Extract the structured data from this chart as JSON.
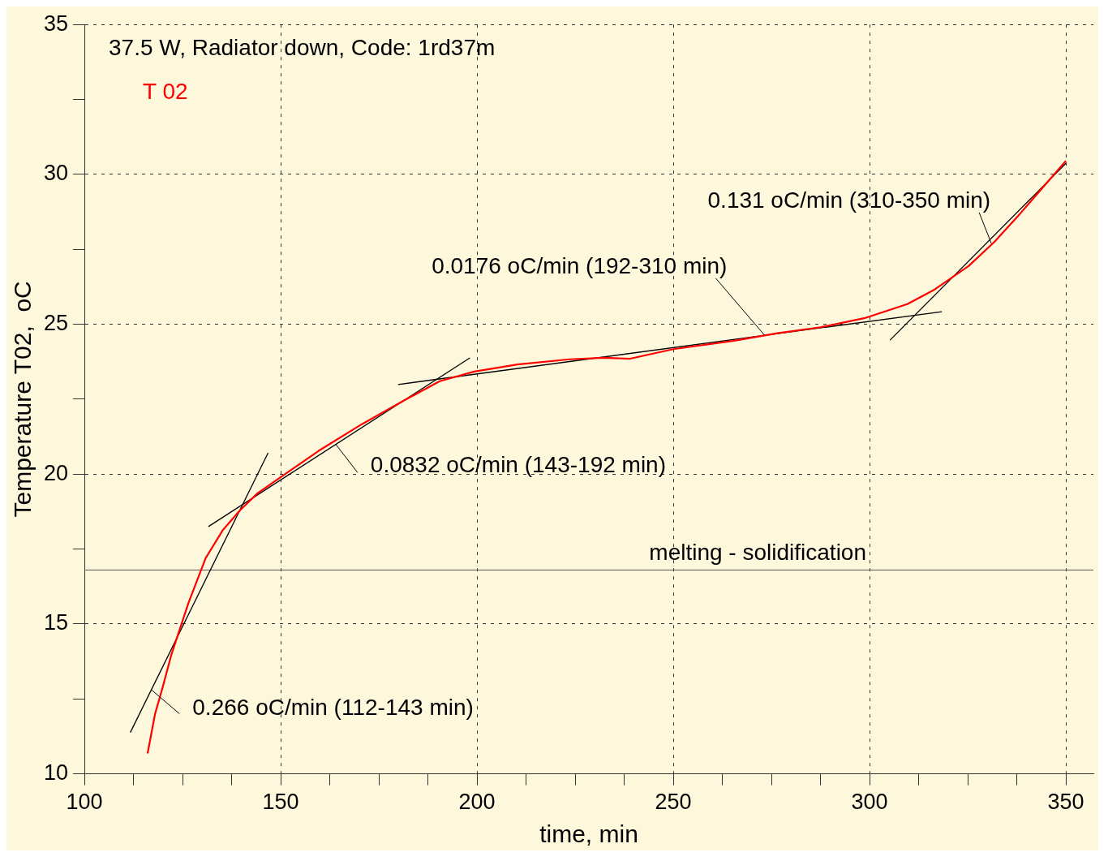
{
  "chart_data": {
    "type": "line",
    "xlabel": "time, min",
    "ylabel": "Temperature T02,  oC",
    "xlim": [
      100,
      357
    ],
    "ylim": [
      10,
      35
    ],
    "xticks": [
      100,
      {
        "value": 112.5,
        "label": null
      },
      {
        "value": 125,
        "label": null
      },
      {
        "value": 137.5,
        "label": null
      },
      150,
      {
        "value": 162.5,
        "label": null
      },
      {
        "value": 175,
        "label": null
      },
      {
        "value": 187.5,
        "label": null
      },
      200,
      {
        "value": 212.5,
        "label": null
      },
      {
        "value": 225,
        "label": null
      },
      {
        "value": 237.5,
        "label": null
      },
      250,
      {
        "value": 262.5,
        "label": null
      },
      {
        "value": 275,
        "label": null
      },
      {
        "value": 287.5,
        "label": null
      },
      300,
      {
        "value": 312.5,
        "label": null
      },
      {
        "value": 325,
        "label": null
      },
      {
        "value": 337.5,
        "label": null
      },
      350
    ],
    "yticks": [
      10,
      {
        "value": 12.5,
        "label": null
      },
      15,
      {
        "value": 17.5,
        "label": null
      },
      20,
      {
        "value": 22.5,
        "label": null
      },
      25,
      {
        "value": 27.5,
        "label": null
      },
      30,
      {
        "value": 32.5,
        "label": null
      },
      35
    ],
    "grid": true,
    "legend": "top left",
    "line_style": "dashed",
    "series": [
      {
        "name": "T 02",
        "color": "#ff0000",
        "line_style": "solid",
        "x": [
          116.1,
          118,
          119.9,
          122.1,
          126.5,
          130.9,
          135.3,
          139.7,
          144.1,
          150.7,
          159.6,
          170.6,
          181.6,
          190.5,
          199.3,
          210.3,
          223.6,
          232.4,
          239,
          250,
          265.5,
          276.5,
          287.5,
          298.6,
          309.6,
          316.2,
          325.2,
          331.8,
          338.4,
          350
        ],
        "values": [
          10.68,
          12.0,
          12.87,
          13.95,
          15.7,
          17.2,
          18.14,
          18.8,
          19.36,
          19.96,
          20.77,
          21.66,
          22.47,
          23.1,
          23.42,
          23.66,
          23.83,
          23.88,
          23.85,
          24.17,
          24.45,
          24.7,
          24.9,
          25.2,
          25.67,
          26.13,
          26.94,
          27.75,
          28.7,
          30.45
        ]
      },
      {
        "color": "#000000",
        "line_style": "solid",
        "x": [
          111.7,
          146.8
        ],
        "values": [
          11.38,
          20.71
        ]
      },
      {
        "color": "#000000",
        "line_style": "solid",
        "x": [
          131.6,
          198.2
        ],
        "values": [
          18.25,
          23.88
        ]
      },
      {
        "color": "#000000",
        "line_style": "solid",
        "x": [
          179.9,
          318.4
        ],
        "values": [
          22.99,
          25.42
        ]
      },
      {
        "color": "#000000",
        "line_style": "solid",
        "x": [
          305.2,
          350
        ],
        "values": [
          24.47,
          30.37
        ]
      }
    ],
    "ref_lines": [
      {
        "axis": "y",
        "value": 16.8,
        "label": "melting - solidification",
        "color": "#555555",
        "line_style": "solid"
      }
    ],
    "annotations": [
      "37.5 W, Radiator down, Code: 1rd37m",
      {
        "text": "0.266 oC/min (112-143 min)",
        "x": 117.2,
        "y": 12.79
      },
      {
        "text": "0.0832 oC/min (143-192 min)",
        "x": 164,
        "y": 21.0
      },
      {
        "text": "0.0176 oC/min (192-310 min)",
        "x": 273.2,
        "y": 24.64
      },
      {
        "text": "0.131 oC/min (310-350 min)",
        "x": 331,
        "y": 27.7
      }
    ]
  }
}
